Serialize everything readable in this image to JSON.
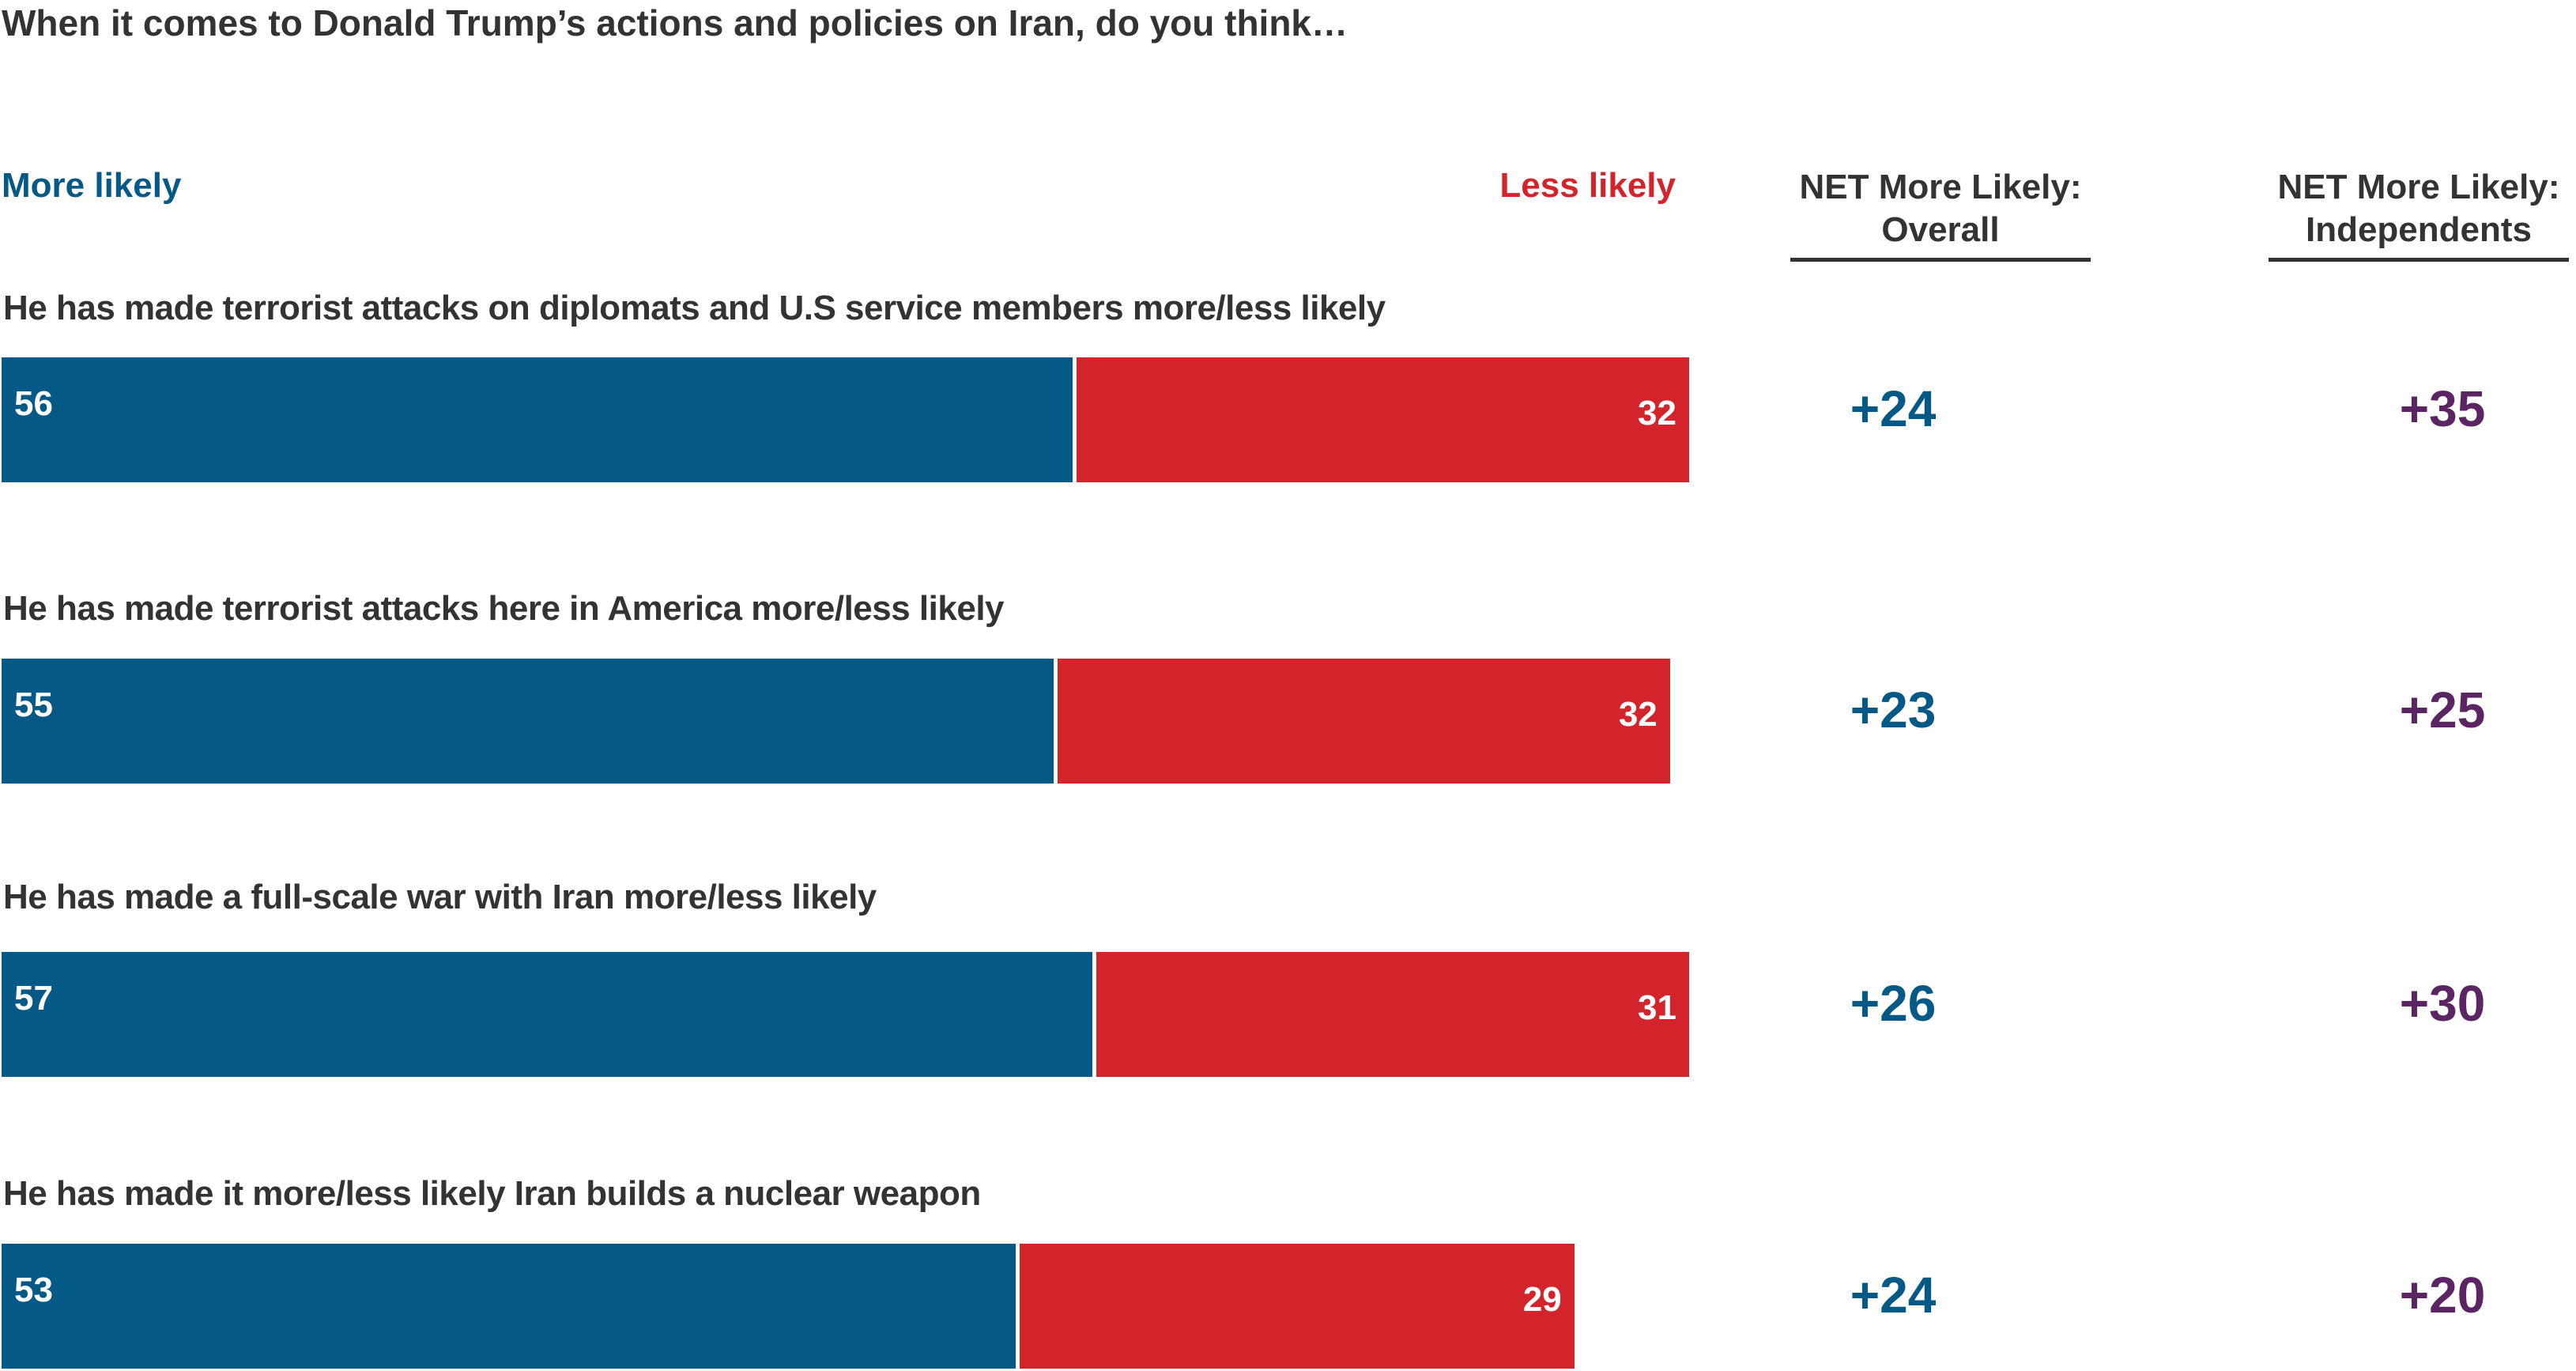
{
  "chart_data": {
    "type": "bar",
    "title": "When it comes to Donald Trump’s actions and policies on Iran, do you think…",
    "legend": {
      "more": "More likely",
      "less": "Less likely"
    },
    "columns": {
      "overall": "NET More Likely:\nOverall",
      "independents": "NET More Likely:\nIndependents"
    },
    "categories": [
      "He has made terrorist attacks on diplomats and U.S service members more/less likely",
      "He has made terrorist attacks here in America more/less likely",
      "He has made a full-scale war with Iran more/less likely",
      "He has made it more/less likely Iran builds a nuclear weapon"
    ],
    "series": [
      {
        "name": "More likely",
        "values": [
          56,
          55,
          57,
          53
        ]
      },
      {
        "name": "Less likely",
        "values": [
          32,
          32,
          31,
          29
        ]
      }
    ],
    "net_overall": [
      "+24",
      "+23",
      "+26",
      "+24"
    ],
    "net_independents": [
      "+35",
      "+25",
      "+30",
      "+20"
    ],
    "colors": {
      "more": "#045986",
      "less": "#d4242b",
      "net_overall": "#045986",
      "net_independents": "#5b2463",
      "text": "#333333"
    }
  }
}
